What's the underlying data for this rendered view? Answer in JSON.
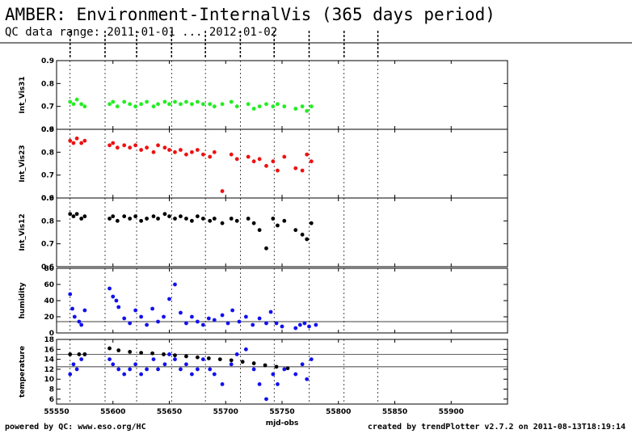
{
  "header": {
    "title": "AMBER: Environment-InternalVis (365 days period)",
    "subtitle": "QC data range: 2011-01-01 ... 2012-01-02"
  },
  "footer": {
    "left": "powered by QC: www.eso.org/HC",
    "right": "created by trendPlotter v2.7.2 on 2011-08-13T18:19:14"
  },
  "chart_data": {
    "type": "scatter",
    "xlabel": "mjd-obs",
    "xlim": [
      55550,
      55950
    ],
    "xticks": [
      55550,
      55600,
      55650,
      55700,
      55750,
      55800,
      55850,
      55900
    ],
    "vlines": [
      55562,
      55593,
      55621,
      55652,
      55682,
      55713,
      55743,
      55774,
      55805,
      55835
    ],
    "panels": [
      {
        "ylabel": "Int_Vis31",
        "ylim": [
          0.6,
          0.9
        ],
        "yticks": [
          0.6,
          0.7,
          0.8,
          0.9
        ],
        "color": "#22ee22",
        "hlines": [],
        "series": [
          {
            "name": "",
            "x": [
              55562,
              55565,
              55568,
              55572,
              55575,
              55597,
              55600,
              55604,
              55610,
              55615,
              55620,
              55625,
              55630,
              55636,
              55640,
              55646,
              55650,
              55655,
              55660,
              55665,
              55670,
              55675,
              55680,
              55686,
              55690,
              55697,
              55705,
              55710,
              55720,
              55725,
              55730,
              55736,
              55742,
              55746,
              55752,
              55762,
              55768,
              55772,
              55776
            ],
            "y": [
              0.72,
              0.71,
              0.73,
              0.71,
              0.7,
              0.71,
              0.72,
              0.7,
              0.72,
              0.71,
              0.7,
              0.71,
              0.72,
              0.7,
              0.71,
              0.72,
              0.71,
              0.72,
              0.71,
              0.72,
              0.71,
              0.72,
              0.71,
              0.71,
              0.7,
              0.71,
              0.72,
              0.7,
              0.71,
              0.69,
              0.7,
              0.71,
              0.7,
              0.71,
              0.7,
              0.69,
              0.7,
              0.68,
              0.7
            ]
          }
        ]
      },
      {
        "ylabel": "Int_Vis23",
        "ylim": [
          0.6,
          0.9
        ],
        "yticks": [
          0.6,
          0.7,
          0.8,
          0.9
        ],
        "color": "#ee1111",
        "hlines": [],
        "series": [
          {
            "name": "",
            "x": [
              55562,
              55565,
              55568,
              55572,
              55575,
              55597,
              55600,
              55604,
              55610,
              55615,
              55620,
              55625,
              55630,
              55636,
              55640,
              55646,
              55650,
              55655,
              55660,
              55665,
              55670,
              55675,
              55680,
              55686,
              55690,
              55697,
              55705,
              55710,
              55720,
              55725,
              55730,
              55736,
              55742,
              55746,
              55752,
              55762,
              55768,
              55772,
              55776
            ],
            "y": [
              0.85,
              0.84,
              0.86,
              0.84,
              0.85,
              0.83,
              0.84,
              0.82,
              0.83,
              0.82,
              0.83,
              0.81,
              0.82,
              0.8,
              0.83,
              0.82,
              0.81,
              0.8,
              0.81,
              0.79,
              0.8,
              0.81,
              0.79,
              0.78,
              0.8,
              0.63,
              0.79,
              0.77,
              0.78,
              0.76,
              0.77,
              0.74,
              0.76,
              0.72,
              0.78,
              0.73,
              0.72,
              0.79,
              0.76
            ]
          }
        ]
      },
      {
        "ylabel": "Int_Vis12",
        "ylim": [
          0.6,
          0.9
        ],
        "yticks": [
          0.6,
          0.7,
          0.8,
          0.9
        ],
        "color": "#000000",
        "hlines": [],
        "series": [
          {
            "name": "",
            "x": [
              55562,
              55565,
              55568,
              55572,
              55575,
              55597,
              55600,
              55604,
              55610,
              55615,
              55620,
              55625,
              55630,
              55636,
              55640,
              55646,
              55650,
              55655,
              55660,
              55665,
              55670,
              55675,
              55680,
              55686,
              55690,
              55697,
              55705,
              55710,
              55720,
              55725,
              55730,
              55736,
              55742,
              55746,
              55752,
              55762,
              55768,
              55772,
              55776
            ],
            "y": [
              0.83,
              0.82,
              0.83,
              0.81,
              0.82,
              0.81,
              0.82,
              0.8,
              0.82,
              0.81,
              0.82,
              0.8,
              0.81,
              0.82,
              0.81,
              0.83,
              0.82,
              0.81,
              0.82,
              0.81,
              0.8,
              0.82,
              0.81,
              0.8,
              0.81,
              0.79,
              0.81,
              0.8,
              0.81,
              0.79,
              0.76,
              0.68,
              0.81,
              0.78,
              0.8,
              0.76,
              0.74,
              0.72,
              0.79
            ]
          }
        ]
      },
      {
        "ylabel": "humidity",
        "ylim": [
          0,
          80
        ],
        "yticks": [
          0,
          20,
          40,
          60,
          80
        ],
        "color": "#1111ee",
        "hlines": [
          14
        ],
        "series": [
          {
            "name": "",
            "x": [
              55562,
              55564,
              55566,
              55570,
              55572,
              55575,
              55597,
              55600,
              55603,
              55605,
              55610,
              55615,
              55620,
              55625,
              55630,
              55635,
              55640,
              55645,
              55650,
              55655,
              55660,
              55665,
              55670,
              55675,
              55680,
              55685,
              55690,
              55697,
              55702,
              55706,
              55712,
              55718,
              55724,
              55730,
              55736,
              55740,
              55745,
              55750,
              55762,
              55766,
              55770,
              55774,
              55780
            ],
            "y": [
              48,
              30,
              20,
              14,
              10,
              28,
              55,
              45,
              40,
              32,
              18,
              12,
              28,
              20,
              10,
              30,
              14,
              20,
              42,
              60,
              25,
              12,
              20,
              14,
              10,
              18,
              16,
              22,
              12,
              28,
              14,
              20,
              10,
              18,
              12,
              26,
              12,
              8,
              6,
              10,
              12,
              8,
              10
            ]
          }
        ]
      },
      {
        "ylabel": "temperature",
        "ylim": [
          5,
          18
        ],
        "yticks": [
          6,
          8,
          10,
          12,
          14,
          16,
          18
        ],
        "color": "#1111ee",
        "hlines": [
          15,
          12.5
        ],
        "series": [
          {
            "name": "",
            "x": [
              55562,
              55565,
              55568,
              55572,
              55575,
              55597,
              55600,
              55605,
              55610,
              55615,
              55620,
              55625,
              55630,
              55636,
              55640,
              55646,
              55650,
              55655,
              55660,
              55665,
              55670,
              55675,
              55680,
              55686,
              55690,
              55697,
              55705,
              55710,
              55718,
              55725,
              55730,
              55736,
              55742,
              55746,
              55752,
              55762,
              55768,
              55772,
              55776
            ],
            "y": [
              11,
              13,
              12,
              14,
              15,
              14,
              13,
              12,
              11,
              12,
              13,
              11,
              12,
              14,
              12,
              13,
              15,
              14,
              12,
              13,
              11,
              12,
              14,
              12,
              11,
              9,
              13,
              15,
              16,
              12,
              9,
              6,
              11,
              9,
              12,
              11,
              13,
              10,
              14
            ]
          },
          {
            "name": "",
            "x": [
              55562,
              55570,
              55575,
              55597,
              55605,
              55615,
              55625,
              55635,
              55645,
              55655,
              55665,
              55675,
              55685,
              55695,
              55705,
              55715,
              55725,
              55735,
              55745,
              55755
            ],
            "y": [
              15,
              15,
              15,
              16.2,
              15.8,
              15.5,
              15.3,
              15.2,
              15.0,
              14.8,
              14.6,
              14.4,
              14.2,
              14.0,
              13.8,
              13.5,
              13.2,
              12.8,
              12.5,
              12.2
            ]
          }
        ]
      }
    ]
  }
}
